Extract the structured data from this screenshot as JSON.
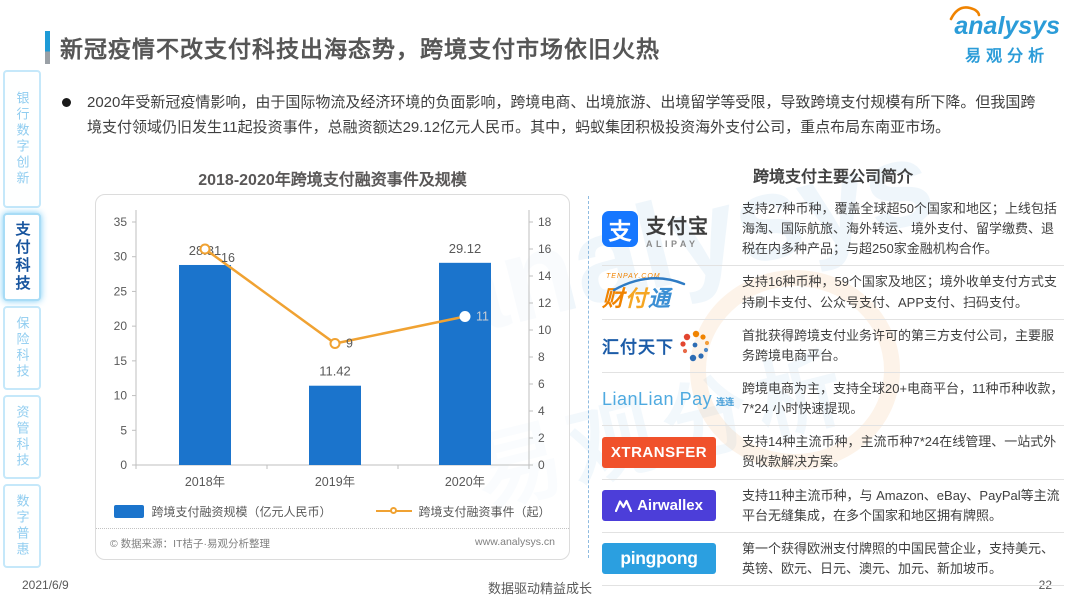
{
  "page": {
    "title": "新冠疫情不改支付科技出海态势，跨境支付市场依旧火热",
    "footer": {
      "date": "2021/6/9",
      "slogan": "数据驱动精益成长",
      "page_number": "22"
    }
  },
  "brand": {
    "name": "analysys",
    "sub": "易观分析"
  },
  "watermark": {
    "en": "analysys",
    "cn": "易观分析"
  },
  "sidebar": {
    "items": [
      {
        "label": "银行数字创新",
        "active": false
      },
      {
        "label": "支付科技",
        "active": true
      },
      {
        "label": "保险科技",
        "active": false
      },
      {
        "label": "资管科技",
        "active": false
      },
      {
        "label": "数字普惠",
        "active": false
      }
    ]
  },
  "summary": {
    "bullet": "2020年受新冠疫情影响，由于国际物流及经济环境的负面影响，跨境电商、出境旅游、出境留学等受限，导致跨境支付规模有所下降。但我国跨境支付领域仍旧发生11起投资事件，总融资额达29.12亿元人民币。其中，蚂蚁集团积极投资海外支付公司，重点布局东南亚市场。"
  },
  "chart_data": {
    "type": "bar",
    "title": "2018-2020年跨境支付融资事件及规模",
    "categories": [
      "2018年",
      "2019年",
      "2020年"
    ],
    "series": [
      {
        "name": "跨境支付融资规模（亿元人民币）",
        "type": "bar",
        "axis": "left",
        "values": [
          28.81,
          11.42,
          29.12
        ],
        "color": "#1B74CC"
      },
      {
        "name": "跨境支付融资事件（起）",
        "type": "line",
        "axis": "right",
        "values": [
          16,
          9,
          11
        ],
        "color": "#F0A232"
      }
    ],
    "left_axis": {
      "min": 0,
      "max": 35,
      "step": 5
    },
    "right_axis": {
      "min": 0,
      "max": 18,
      "step": 2
    },
    "grid": false,
    "legend_position": "bottom",
    "line_label_colors": [
      "#595959",
      "#595959",
      "#C9CED4"
    ],
    "bar_label_color": "#595959",
    "source": "© 数据来源：IT桔子·易观分析整理",
    "source_url": "www.analysys.cn"
  },
  "companies": {
    "title": "跨境支付主要公司简介",
    "rows": [
      {
        "name": "支付宝",
        "sub": "ALIPAY",
        "desc": "支持27种币种，覆盖全球超50个国家和地区；上线包括海淘、国际航旅、海外转运、境外支付、留学缴费、退税在内多种产品；与超250家金融机构合作。"
      },
      {
        "name": "财付通",
        "sub": "TENPAY.COM",
        "desc": "支持16种币种，59个国家及地区；境外收单支付方式支持刷卡支付、公众号支付、APP支付、扫码支付。"
      },
      {
        "name": "汇付天下",
        "desc": "首批获得跨境支付业务许可的第三方支付公司，主要服务跨境电商平台。"
      },
      {
        "name": "LianLian Pay",
        "sub": "连连",
        "desc": "跨境电商为主，支持全球20+电商平台，11种币种收款，7*24 小时快速提现。"
      },
      {
        "name": "XTRANSFER",
        "color": "#F0512B",
        "desc": "支持14种主流币种，主流币种7*24在线管理、一站式外贸收款解决方案。"
      },
      {
        "name": "Airwallex",
        "color": "#4C3ED9",
        "desc": "支持11种主流币种，与 Amazon、eBay、PayPal等主流平台无缝集成，在多个国家和地区拥有牌照。"
      },
      {
        "name": "pingpong",
        "color": "#2B9FE0",
        "desc": "第一个获得欧洲支付牌照的中国民营企业，支持美元、英镑、欧元、日元、澳元、加元、新加坡币。"
      }
    ]
  }
}
